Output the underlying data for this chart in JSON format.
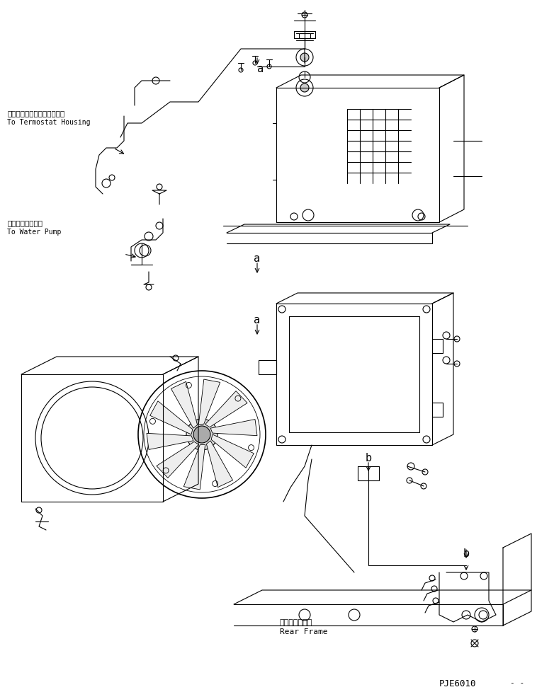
{
  "title": "",
  "background_color": "#ffffff",
  "line_color": "#000000",
  "label_thermostat_jp": "サーモスタットハウジングへ",
  "label_thermostat_en": "To Termostat Housing",
  "label_waterpump_jp": "ウォータポンプへ",
  "label_waterpump_en": "To Water Pump",
  "label_rear_frame_jp": "リヤーフレーム",
  "label_rear_frame_en": "Rear Frame",
  "label_a1": "a",
  "label_a2": "a",
  "label_b1": "b",
  "label_b2": "b",
  "label_code": "PJE6010",
  "fig_width": 7.58,
  "fig_height": 9.79,
  "dpi": 100
}
